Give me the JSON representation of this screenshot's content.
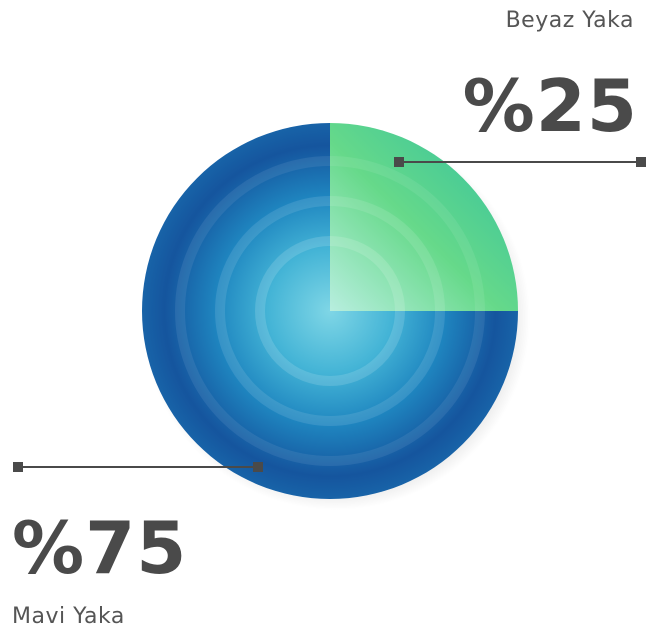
{
  "chart_data": {
    "type": "pie",
    "categories": [
      "Beyaz Yaka",
      "Mavi Yaka"
    ],
    "values": [
      25,
      75
    ],
    "value_labels": [
      "%25",
      "%75"
    ],
    "colors": [
      "#5fd39a",
      "#1a78b8"
    ],
    "legend": "none"
  }
}
